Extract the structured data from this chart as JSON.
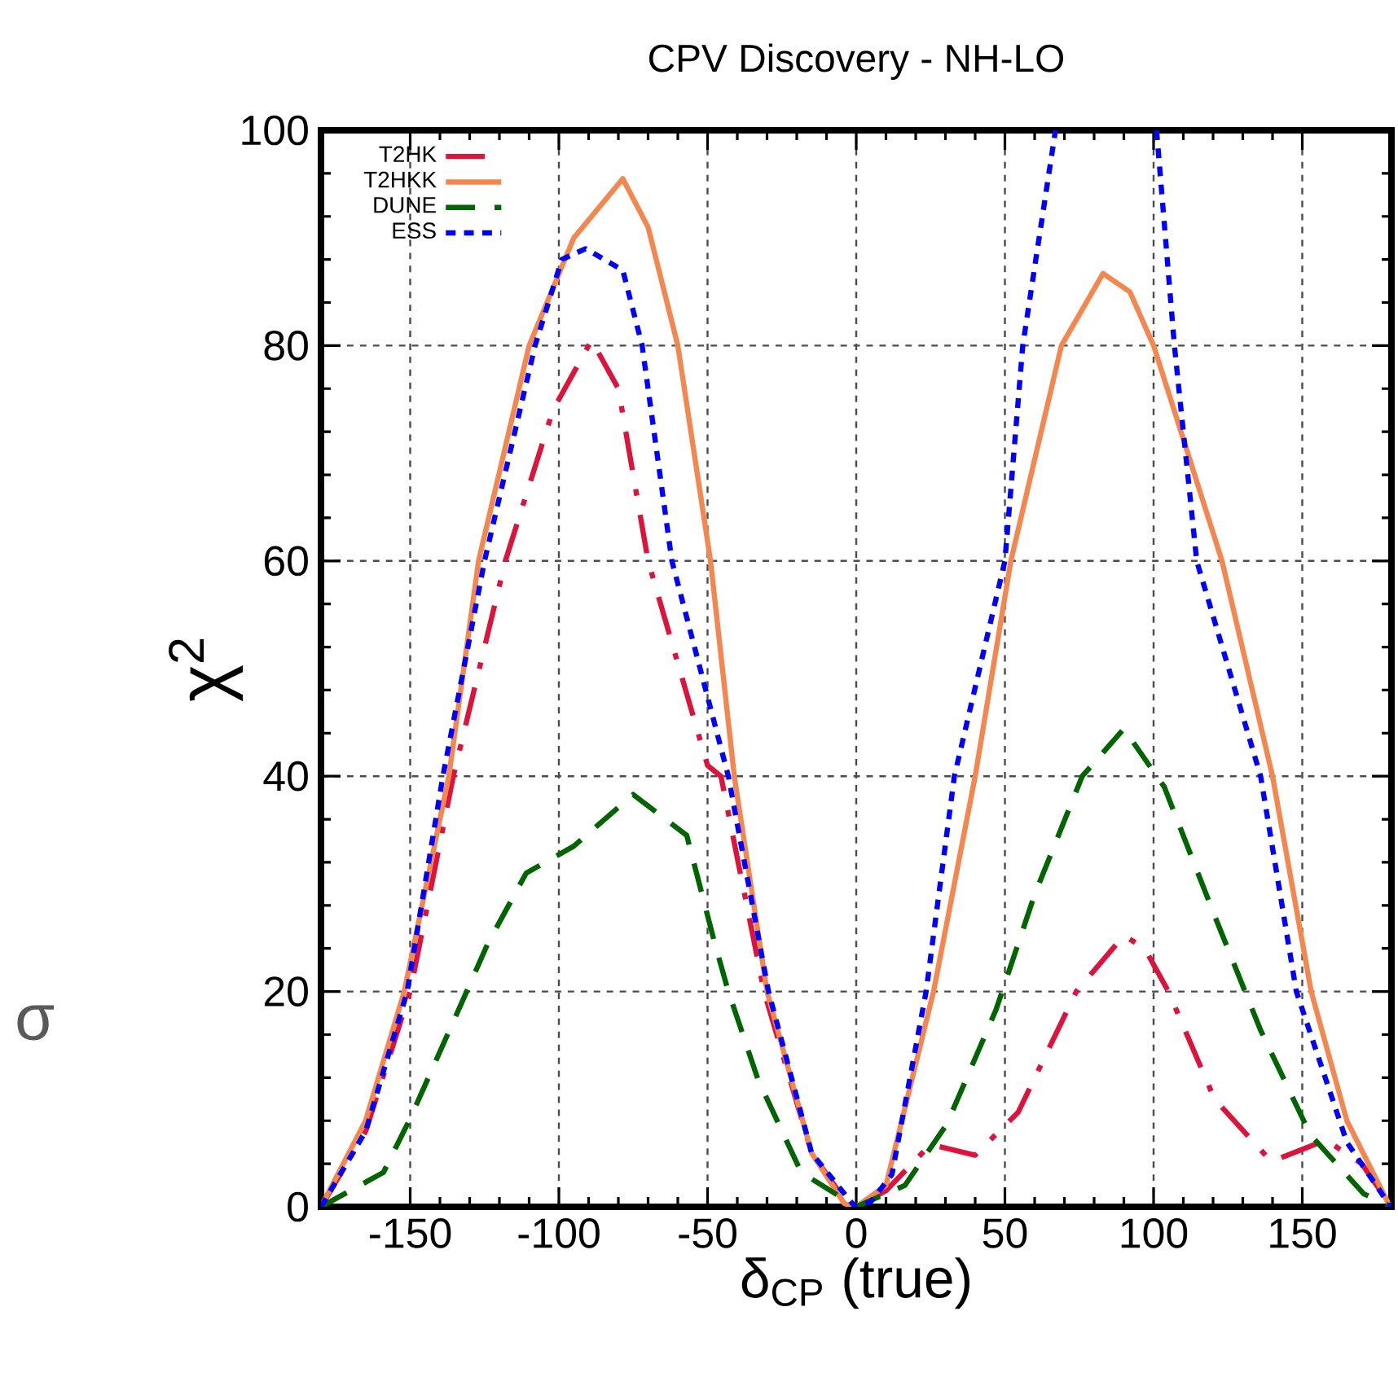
{
  "chart_data": {
    "type": "line",
    "title": "CPV Discovery - NH-LO",
    "xlabel": "δ$_{CP}$ (true)",
    "ylabel": "χ$^{2}$",
    "annotations": [
      "σ"
    ],
    "xlim": [
      -180,
      180
    ],
    "ylim": [
      0,
      100
    ],
    "xticks": [
      -150,
      -100,
      -50,
      0,
      50,
      100,
      150
    ],
    "yticks": [
      0,
      20,
      40,
      60,
      80,
      100
    ],
    "grid": true,
    "legend": "top left",
    "series": [
      {
        "name": "T2HK",
        "color": "#dc143c",
        "line_style": "dashdot",
        "x": [
          -180,
          -165,
          -150,
          -135.5,
          -118,
          -102,
          -89,
          -80,
          -70,
          -50,
          -45.5,
          -31,
          -15,
          -3,
          0,
          10,
          25,
          40,
          54.5,
          74,
          90,
          97,
          105,
          120.5,
          139.6,
          158,
          170,
          180
        ],
        "values": [
          0,
          7,
          20,
          40,
          60,
          74,
          80.5,
          76,
          60,
          41,
          40,
          20,
          5,
          0.3,
          0,
          1.5,
          5.8,
          4.8,
          8.8,
          20,
          25.2,
          24,
          20,
          10,
          4.2,
          6.2,
          4,
          0
        ]
      },
      {
        "name": "T2HKK",
        "color": "#f4874f",
        "line_style": "solid",
        "x": [
          -180,
          -165,
          -152,
          -137,
          -127,
          -110,
          -95,
          -78.5,
          -70,
          -60,
          -49,
          -41,
          -30,
          -15,
          -4,
          0,
          10,
          26,
          40,
          52,
          69,
          83,
          92,
          100,
          123,
          140,
          153,
          165,
          179,
          180
        ],
        "values": [
          0,
          8,
          20,
          40,
          60,
          80,
          90,
          95.5,
          91,
          80,
          60,
          40,
          20,
          5,
          0.3,
          0,
          2,
          20,
          40,
          60,
          80,
          86.7,
          85,
          80,
          60,
          40,
          20,
          8,
          0.3,
          0
        ]
      },
      {
        "name": "DUNE",
        "color": "#006400",
        "line_style": "dashed",
        "x": [
          -180,
          -159,
          -150,
          -131,
          -124,
          -111,
          -95,
          -75,
          -57,
          -47.5,
          -43,
          -33,
          -18.5,
          0,
          16.4,
          30.5,
          47,
          60,
          76,
          90,
          103.6,
          120,
          136,
          152.7,
          170.7,
          180
        ],
        "values": [
          0,
          3.2,
          8.2,
          20,
          24.4,
          31,
          33.5,
          38.3,
          34.5,
          24.4,
          20,
          11.8,
          3.2,
          0,
          2,
          7.7,
          18.3,
          29,
          40,
          44.4,
          39,
          27.4,
          16.4,
          6.7,
          1.2,
          0
        ]
      },
      {
        "name": "ESS",
        "color": "#0000ff",
        "line_style": "dotted",
        "x": [
          -180,
          -165,
          -151,
          -139,
          -125,
          -108,
          -99,
          -91,
          -78.5,
          -72,
          -62,
          -43,
          -29.5,
          -15,
          -1,
          0,
          5,
          12,
          23.5,
          33,
          50,
          56,
          67,
          84,
          101,
          107,
          114.5,
          136,
          148,
          165,
          179,
          180
        ],
        "values": [
          0,
          7,
          20,
          40,
          60,
          80,
          88,
          89,
          87,
          80,
          60,
          40,
          20,
          5,
          0.2,
          0,
          0.5,
          3,
          20,
          40,
          60,
          80,
          100,
          null,
          100,
          80,
          60,
          40,
          20,
          6,
          0.3,
          0
        ]
      }
    ]
  }
}
